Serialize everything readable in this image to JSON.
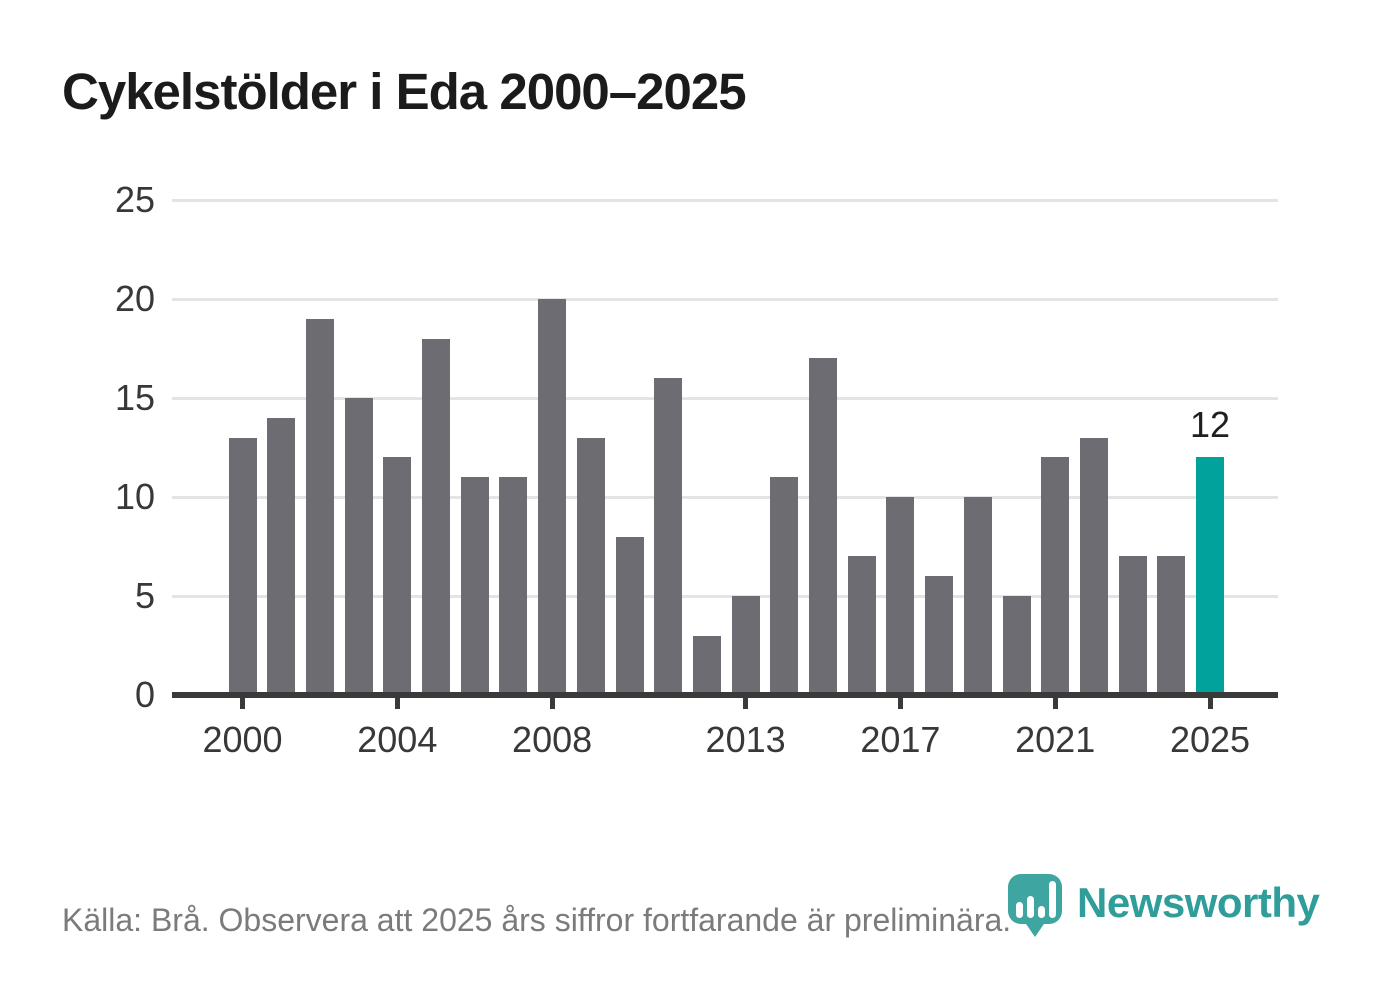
{
  "title": "Cykelstölder i Eda 2000–2025",
  "footer": {
    "source_text": "Källa: Brå. Observera att 2025 års siffror fortfarande är preliminära.",
    "brand": "Newsworthy"
  },
  "colors": {
    "bar": "#6d6c72",
    "highlight": "#00a29b",
    "grid": "#e4e4e4",
    "axis": "#3a3a3a",
    "title_text": "#1b1b1b",
    "tick_text": "#383838",
    "footer_text": "#7b7b7b",
    "brand_teal": "#2f9d99",
    "icon_teal": "#3ea5a0"
  },
  "chart_data": {
    "type": "bar",
    "title": "Cykelstölder i Eda 2000–2025",
    "categories": [
      2000,
      2001,
      2002,
      2003,
      2004,
      2005,
      2006,
      2007,
      2008,
      2009,
      2010,
      2011,
      2012,
      2013,
      2014,
      2015,
      2016,
      2017,
      2018,
      2019,
      2020,
      2021,
      2022,
      2023,
      2024,
      2025
    ],
    "values": [
      13,
      14,
      19,
      15,
      12,
      18,
      11,
      11,
      20,
      13,
      8,
      16,
      3,
      5,
      11,
      17,
      7,
      10,
      6,
      10,
      5,
      12,
      13,
      7,
      7,
      12
    ],
    "highlight_index": 25,
    "annotations": [
      {
        "index": 25,
        "text": "12"
      }
    ],
    "xlabel": "",
    "ylabel": "",
    "ylim": [
      0,
      25
    ],
    "yticks": [
      0,
      5,
      10,
      15,
      20,
      25
    ],
    "xticks": [
      2000,
      2004,
      2008,
      2013,
      2017,
      2021,
      2025
    ],
    "grid": "horizontal",
    "legend": "none"
  }
}
